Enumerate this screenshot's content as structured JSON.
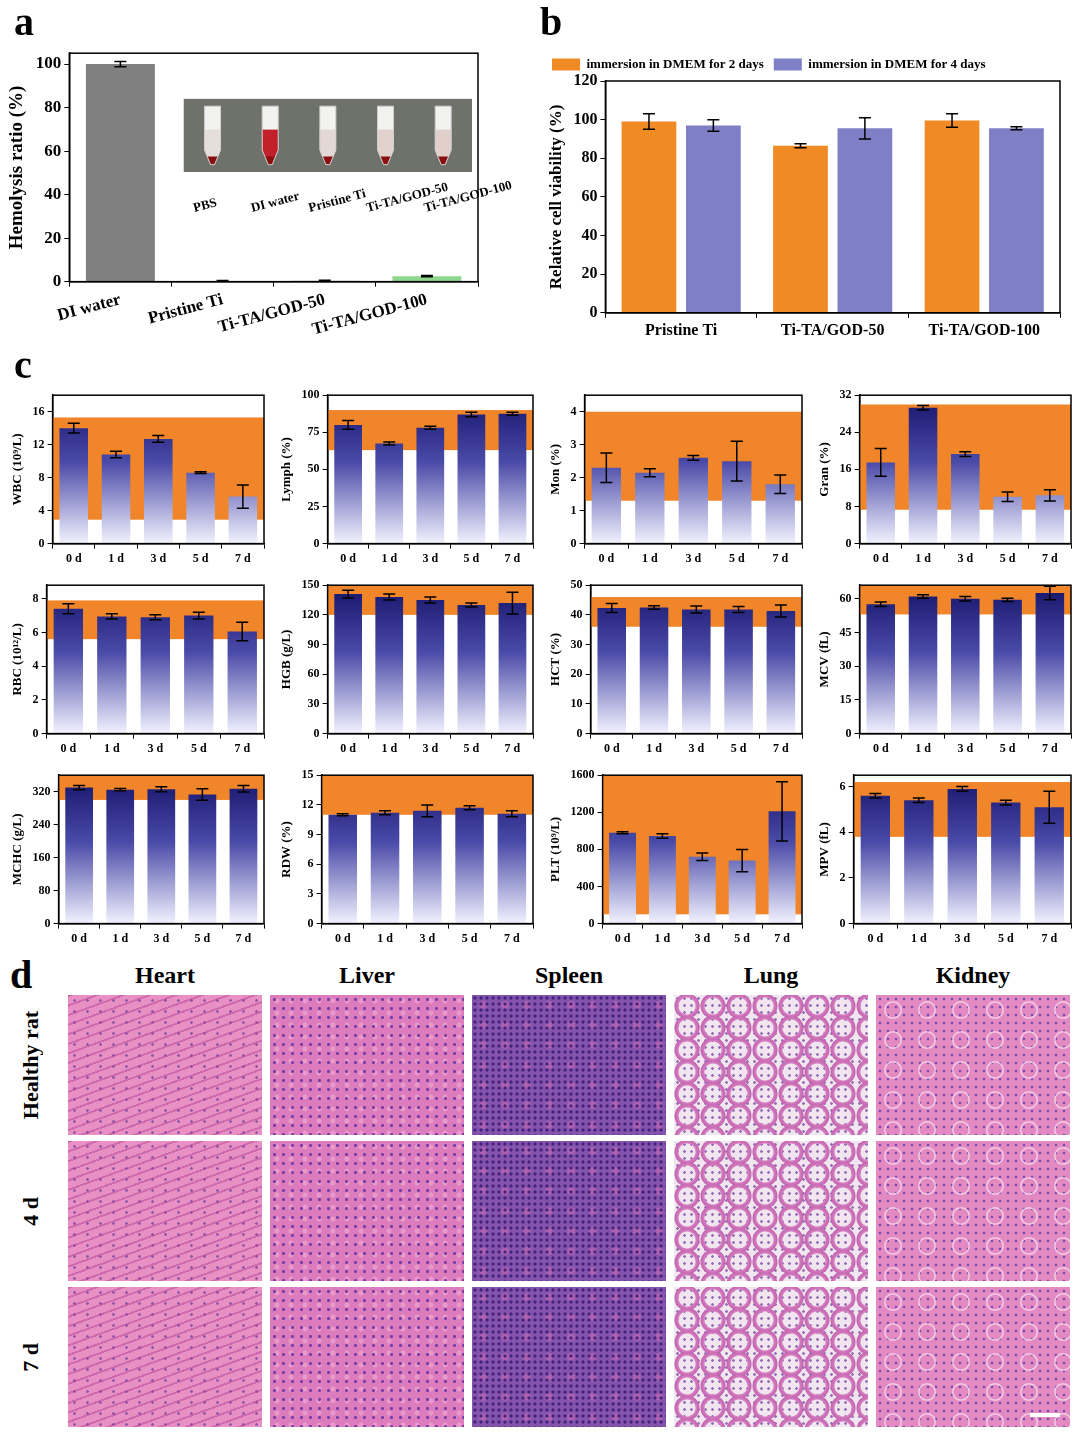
{
  "chart_data": [
    {
      "panel": "a",
      "type": "bar",
      "ylabel": "Hemolysis ratio (%)",
      "categories": [
        "DI water",
        "Pristine Ti",
        "Ti-TA/GOD-50",
        "Ti-TA/GOD-100"
      ],
      "values": [
        100,
        0.3,
        0.4,
        2.5
      ],
      "errors": [
        1.2,
        0.2,
        0.3,
        0.3
      ],
      "colors": [
        "#808080",
        "#9a9a9a",
        "#b0b0b0",
        "#8fd68f"
      ],
      "ylim": [
        0,
        105
      ],
      "yticks": [
        0,
        20,
        40,
        60,
        80,
        100
      ],
      "inset": {
        "labels": [
          "PBS",
          "DI water",
          "Pristine Ti",
          "Ti-TA/GOD-50",
          "Ti-TA/GOD-100"
        ],
        "colors": [
          "#e6dedb",
          "#c2202b",
          "#e4d8d4",
          "#e2d2ce",
          "#e0cfca"
        ]
      }
    },
    {
      "panel": "b",
      "type": "bar",
      "ylabel": "Relative cell viability (%)",
      "categories": [
        "Pristine Ti",
        "Ti-TA/GOD-50",
        "Ti-TA/GOD-100"
      ],
      "series": [
        {
          "name": "immersion in DMEM for 2 days",
          "color": "#f08a24",
          "values": [
            99,
            86.5,
            99.5
          ],
          "errors": [
            4,
            1,
            3.5
          ]
        },
        {
          "name": "immersion in DMEM for 4 days",
          "color": "#7f7fc6",
          "values": [
            97,
            95.5,
            95.5
          ],
          "errors": [
            3,
            5.5,
            0.8
          ]
        }
      ],
      "legend": "top",
      "ylim": [
        0,
        120
      ],
      "yticks": [
        0,
        20,
        40,
        60,
        80,
        100,
        120
      ]
    },
    {
      "panel": "c",
      "type": "bar",
      "ylabel": "WBC (10⁹/L)",
      "categories": [
        "0 d",
        "1 d",
        "3 d",
        "5 d",
        "7 d"
      ],
      "values": [
        14,
        10.8,
        12.7,
        8.6,
        5.7
      ],
      "errors": [
        0.6,
        0.4,
        0.4,
        0.1,
        1.4
      ],
      "reference_range": [
        2.9,
        15.3
      ],
      "ylim": [
        0,
        18
      ],
      "yticks": [
        0,
        4,
        8,
        12,
        16
      ]
    },
    {
      "type": "bar",
      "ylabel": "Lymph (%)",
      "categories": [
        "0 d",
        "1 d",
        "3 d",
        "5 d",
        "7 d"
      ],
      "values": [
        80,
        67.5,
        78,
        87,
        87.5
      ],
      "errors": [
        3,
        1,
        1,
        1.5,
        1
      ],
      "reference_range": [
        63,
        90
      ],
      "ylim": [
        0,
        100
      ],
      "yticks": [
        0,
        25,
        50,
        75,
        100
      ]
    },
    {
      "type": "bar",
      "ylabel": "Mon (%)",
      "categories": [
        "0 d",
        "1 d",
        "3 d",
        "5 d",
        "7 d"
      ],
      "values": [
        2.3,
        2.15,
        2.6,
        2.5,
        1.8
      ],
      "errors": [
        0.45,
        0.12,
        0.07,
        0.6,
        0.28
      ],
      "reference_range": [
        1.3,
        4.0
      ],
      "ylim": [
        0,
        4.5
      ],
      "yticks": [
        0,
        1,
        2,
        3,
        4
      ]
    },
    {
      "type": "bar",
      "ylabel": "Gran (%)",
      "categories": [
        "0 d",
        "1 d",
        "3 d",
        "5 d",
        "7 d"
      ],
      "values": [
        17.5,
        29.3,
        19.3,
        10.1,
        10.4
      ],
      "errors": [
        3,
        0.5,
        0.5,
        1,
        1.2
      ],
      "reference_range": [
        7.3,
        30
      ],
      "ylim": [
        0,
        32
      ],
      "yticks": [
        0,
        8,
        16,
        24,
        32
      ]
    },
    {
      "type": "bar",
      "ylabel": "RBC (10¹²/L)",
      "categories": [
        "0 d",
        "1 d",
        "3 d",
        "5 d",
        "7 d"
      ],
      "values": [
        7.4,
        6.95,
        6.9,
        7.0,
        6.05
      ],
      "errors": [
        0.3,
        0.15,
        0.15,
        0.2,
        0.55
      ],
      "reference_range": [
        5.6,
        7.9
      ],
      "ylim": [
        0,
        8.8
      ],
      "yticks": [
        0,
        2,
        4,
        6,
        8
      ]
    },
    {
      "type": "bar",
      "ylabel": "HGB (g/L)",
      "categories": [
        "0 d",
        "1 d",
        "3 d",
        "5 d",
        "7 d"
      ],
      "values": [
        141,
        138,
        135,
        130,
        132
      ],
      "errors": [
        4,
        3,
        3,
        2,
        11
      ],
      "reference_range": [
        120,
        150
      ],
      "ylim": [
        0,
        150
      ],
      "yticks": [
        0,
        30,
        60,
        90,
        120,
        150
      ]
    },
    {
      "type": "bar",
      "ylabel": "HCT (%)",
      "categories": [
        "0 d",
        "1 d",
        "3 d",
        "5 d",
        "7 d"
      ],
      "values": [
        42.3,
        42.5,
        41.8,
        41.8,
        41.3
      ],
      "errors": [
        1.5,
        0.6,
        1.2,
        1,
        2
      ],
      "reference_range": [
        36,
        46
      ],
      "ylim": [
        0,
        50
      ],
      "yticks": [
        0,
        10,
        20,
        30,
        40,
        50
      ]
    },
    {
      "type": "bar",
      "ylabel": "MCV (fL)",
      "categories": [
        "0 d",
        "1 d",
        "3 d",
        "5 d",
        "7 d"
      ],
      "values": [
        57.5,
        61,
        60,
        59.5,
        62.5
      ],
      "errors": [
        1,
        0.8,
        1,
        0.7,
        3
      ],
      "reference_range": [
        53,
        66
      ],
      "ylim": [
        0,
        66
      ],
      "yticks": [
        0,
        15,
        30,
        45,
        60
      ]
    },
    {
      "type": "bar",
      "ylabel": "MCHC (g/L)",
      "categories": [
        "0 d",
        "1 d",
        "3 d",
        "5 d",
        "7 d"
      ],
      "values": [
        330,
        325,
        326,
        313,
        327
      ],
      "errors": [
        5,
        3,
        6,
        14,
        8
      ],
      "reference_range": [
        300,
        360
      ],
      "ylim": [
        0,
        360
      ],
      "yticks": [
        0,
        80,
        160,
        240,
        320
      ]
    },
    {
      "type": "bar",
      "ylabel": "RDW (%)",
      "categories": [
        "0 d",
        "1 d",
        "3 d",
        "5 d",
        "7 d"
      ],
      "values": [
        11.0,
        11.2,
        11.4,
        11.7,
        11.1
      ],
      "errors": [
        0.1,
        0.2,
        0.6,
        0.2,
        0.3
      ],
      "reference_range": [
        11,
        15
      ],
      "ylim": [
        0,
        15
      ],
      "yticks": [
        0,
        3,
        6,
        9,
        12,
        15
      ]
    },
    {
      "type": "bar",
      "ylabel": "PLT (10⁹/L)",
      "categories": [
        "0 d",
        "1 d",
        "3 d",
        "5 d",
        "7 d"
      ],
      "values": [
        980,
        945,
        720,
        680,
        1210
      ],
      "errors": [
        10,
        25,
        40,
        120,
        320
      ],
      "reference_range": [
        100,
        1600
      ],
      "ylim": [
        0,
        1600
      ],
      "yticks": [
        0,
        400,
        800,
        1200,
        1600
      ]
    },
    {
      "type": "bar",
      "ylabel": "MPV (fL)",
      "categories": [
        "0 d",
        "1 d",
        "3 d",
        "5 d",
        "7 d"
      ],
      "values": [
        5.6,
        5.4,
        5.9,
        5.3,
        5.1
      ],
      "errors": [
        0.1,
        0.1,
        0.1,
        0.1,
        0.7
      ],
      "reference_range": [
        3.8,
        6.2
      ],
      "ylim": [
        0,
        6.5
      ],
      "yticks": [
        0,
        2,
        4,
        6
      ]
    }
  ],
  "histology": {
    "panel": "d",
    "columns": [
      "Heart",
      "Liver",
      "Spleen",
      "Lung",
      "Kidney"
    ],
    "rows": [
      "Healthy rat",
      "4 d",
      "7 d"
    ]
  }
}
